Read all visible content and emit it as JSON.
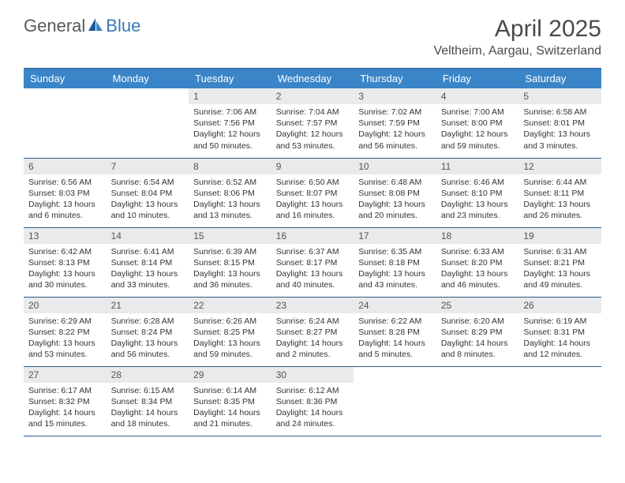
{
  "brand": {
    "part1": "General",
    "part2": "Blue"
  },
  "title": "April 2025",
  "location": "Veltheim, Aargau, Switzerland",
  "colors": {
    "header_bg": "#3a85c7",
    "header_text": "#ffffff",
    "daynum_bg": "#e8eaec",
    "rule": "#2f5a85",
    "logo_gray": "#5a5a5a",
    "logo_blue": "#3a78b5"
  },
  "weekdays": [
    "Sunday",
    "Monday",
    "Tuesday",
    "Wednesday",
    "Thursday",
    "Friday",
    "Saturday"
  ],
  "days": {
    "1": {
      "sunrise": "7:06 AM",
      "sunset": "7:56 PM",
      "daylight": "12 hours and 50 minutes."
    },
    "2": {
      "sunrise": "7:04 AM",
      "sunset": "7:57 PM",
      "daylight": "12 hours and 53 minutes."
    },
    "3": {
      "sunrise": "7:02 AM",
      "sunset": "7:59 PM",
      "daylight": "12 hours and 56 minutes."
    },
    "4": {
      "sunrise": "7:00 AM",
      "sunset": "8:00 PM",
      "daylight": "12 hours and 59 minutes."
    },
    "5": {
      "sunrise": "6:58 AM",
      "sunset": "8:01 PM",
      "daylight": "13 hours and 3 minutes."
    },
    "6": {
      "sunrise": "6:56 AM",
      "sunset": "8:03 PM",
      "daylight": "13 hours and 6 minutes."
    },
    "7": {
      "sunrise": "6:54 AM",
      "sunset": "8:04 PM",
      "daylight": "13 hours and 10 minutes."
    },
    "8": {
      "sunrise": "6:52 AM",
      "sunset": "8:06 PM",
      "daylight": "13 hours and 13 minutes."
    },
    "9": {
      "sunrise": "6:50 AM",
      "sunset": "8:07 PM",
      "daylight": "13 hours and 16 minutes."
    },
    "10": {
      "sunrise": "6:48 AM",
      "sunset": "8:08 PM",
      "daylight": "13 hours and 20 minutes."
    },
    "11": {
      "sunrise": "6:46 AM",
      "sunset": "8:10 PM",
      "daylight": "13 hours and 23 minutes."
    },
    "12": {
      "sunrise": "6:44 AM",
      "sunset": "8:11 PM",
      "daylight": "13 hours and 26 minutes."
    },
    "13": {
      "sunrise": "6:42 AM",
      "sunset": "8:13 PM",
      "daylight": "13 hours and 30 minutes."
    },
    "14": {
      "sunrise": "6:41 AM",
      "sunset": "8:14 PM",
      "daylight": "13 hours and 33 minutes."
    },
    "15": {
      "sunrise": "6:39 AM",
      "sunset": "8:15 PM",
      "daylight": "13 hours and 36 minutes."
    },
    "16": {
      "sunrise": "6:37 AM",
      "sunset": "8:17 PM",
      "daylight": "13 hours and 40 minutes."
    },
    "17": {
      "sunrise": "6:35 AM",
      "sunset": "8:18 PM",
      "daylight": "13 hours and 43 minutes."
    },
    "18": {
      "sunrise": "6:33 AM",
      "sunset": "8:20 PM",
      "daylight": "13 hours and 46 minutes."
    },
    "19": {
      "sunrise": "6:31 AM",
      "sunset": "8:21 PM",
      "daylight": "13 hours and 49 minutes."
    },
    "20": {
      "sunrise": "6:29 AM",
      "sunset": "8:22 PM",
      "daylight": "13 hours and 53 minutes."
    },
    "21": {
      "sunrise": "6:28 AM",
      "sunset": "8:24 PM",
      "daylight": "13 hours and 56 minutes."
    },
    "22": {
      "sunrise": "6:26 AM",
      "sunset": "8:25 PM",
      "daylight": "13 hours and 59 minutes."
    },
    "23": {
      "sunrise": "6:24 AM",
      "sunset": "8:27 PM",
      "daylight": "14 hours and 2 minutes."
    },
    "24": {
      "sunrise": "6:22 AM",
      "sunset": "8:28 PM",
      "daylight": "14 hours and 5 minutes."
    },
    "25": {
      "sunrise": "6:20 AM",
      "sunset": "8:29 PM",
      "daylight": "14 hours and 8 minutes."
    },
    "26": {
      "sunrise": "6:19 AM",
      "sunset": "8:31 PM",
      "daylight": "14 hours and 12 minutes."
    },
    "27": {
      "sunrise": "6:17 AM",
      "sunset": "8:32 PM",
      "daylight": "14 hours and 15 minutes."
    },
    "28": {
      "sunrise": "6:15 AM",
      "sunset": "8:34 PM",
      "daylight": "14 hours and 18 minutes."
    },
    "29": {
      "sunrise": "6:14 AM",
      "sunset": "8:35 PM",
      "daylight": "14 hours and 21 minutes."
    },
    "30": {
      "sunrise": "6:12 AM",
      "sunset": "8:36 PM",
      "daylight": "14 hours and 24 minutes."
    }
  },
  "labels": {
    "sunrise": "Sunrise: ",
    "sunset": "Sunset: ",
    "daylight": "Daylight: "
  },
  "grid": [
    [
      null,
      null,
      "1",
      "2",
      "3",
      "4",
      "5"
    ],
    [
      "6",
      "7",
      "8",
      "9",
      "10",
      "11",
      "12"
    ],
    [
      "13",
      "14",
      "15",
      "16",
      "17",
      "18",
      "19"
    ],
    [
      "20",
      "21",
      "22",
      "23",
      "24",
      "25",
      "26"
    ],
    [
      "27",
      "28",
      "29",
      "30",
      null,
      null,
      null
    ]
  ]
}
